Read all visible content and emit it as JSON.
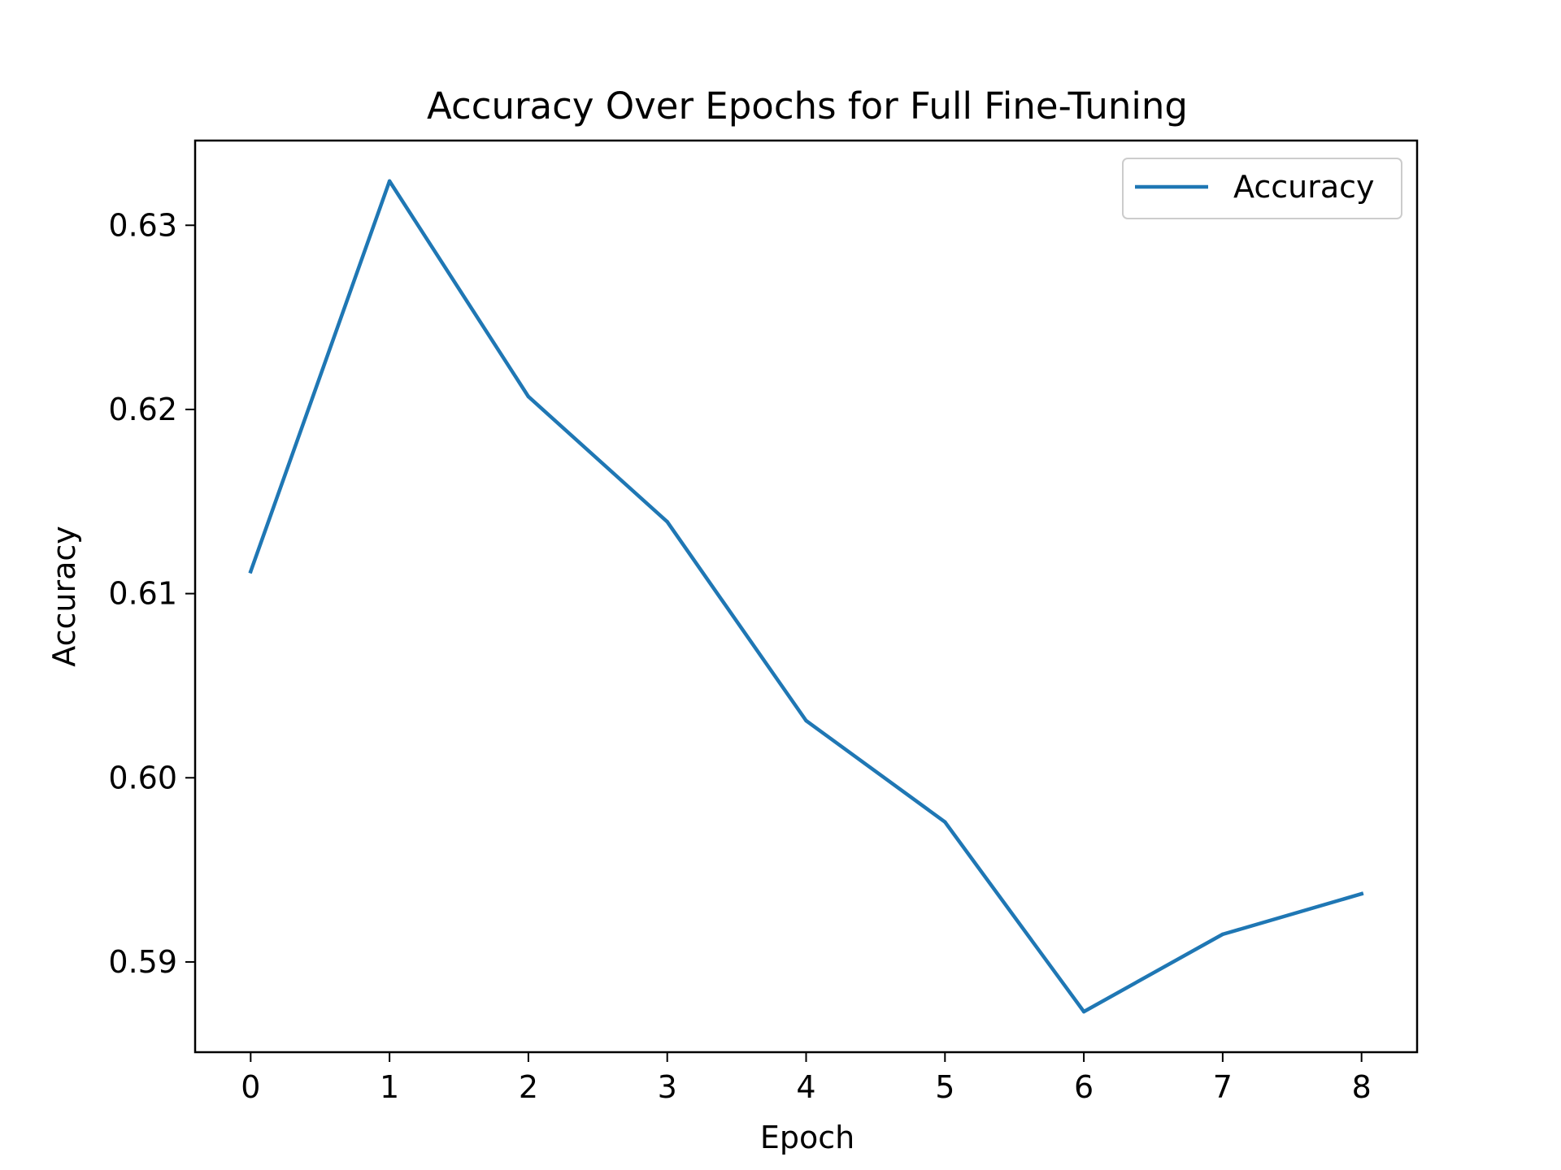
{
  "chart_data": {
    "type": "line",
    "title": "Accuracy Over Epochs for Full Fine-Tuning",
    "xlabel": "Epoch",
    "ylabel": "Accuracy",
    "x": [
      0,
      1,
      2,
      3,
      4,
      5,
      6,
      7,
      8
    ],
    "xticks": [
      "0",
      "1",
      "2",
      "3",
      "4",
      "5",
      "6",
      "7",
      "8"
    ],
    "yticks": [
      0.59,
      0.6,
      0.61,
      0.62,
      0.63
    ],
    "ytick_labels": [
      "0.59",
      "0.60",
      "0.61",
      "0.62",
      "0.63"
    ],
    "xlim": [
      -0.4,
      8.4
    ],
    "ylim": [
      0.5851,
      0.6346
    ],
    "grid": false,
    "legend_position": "top-right",
    "series": [
      {
        "name": "Accuracy",
        "color": "#1f77b4",
        "values": [
          0.6112,
          0.6324,
          0.6207,
          0.6139,
          0.6031,
          0.5976,
          0.5873,
          0.5915,
          0.5937
        ]
      }
    ]
  }
}
